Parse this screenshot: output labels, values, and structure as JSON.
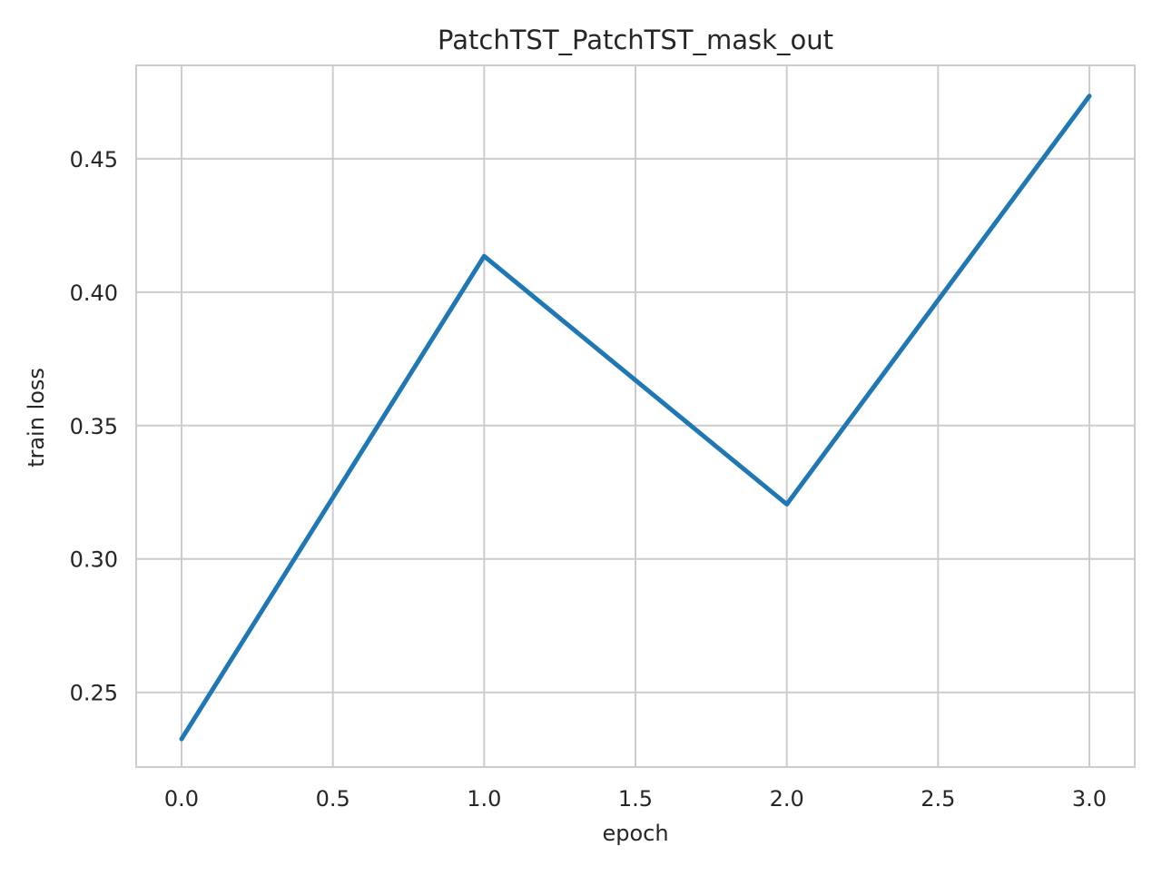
{
  "chart_data": {
    "type": "line",
    "title": "PatchTST_PatchTST_mask_out",
    "xlabel": "epoch",
    "ylabel": "train loss",
    "xlim": [
      -0.15,
      3.15
    ],
    "ylim": [
      0.222,
      0.485
    ],
    "x_ticks": [
      0.0,
      0.5,
      1.0,
      1.5,
      2.0,
      2.5,
      3.0
    ],
    "x_tick_labels": [
      "0.0",
      "0.5",
      "1.0",
      "1.5",
      "2.0",
      "2.5",
      "3.0"
    ],
    "y_ticks": [
      0.25,
      0.3,
      0.35,
      0.4,
      0.45
    ],
    "y_tick_labels": [
      "0.25",
      "0.30",
      "0.35",
      "0.40",
      "0.45"
    ],
    "grid": true,
    "series": [
      {
        "x": [
          0,
          1,
          2,
          3
        ],
        "y": [
          0.2325,
          0.4135,
          0.3205,
          0.4735
        ],
        "color": "#1f77b4"
      }
    ]
  }
}
